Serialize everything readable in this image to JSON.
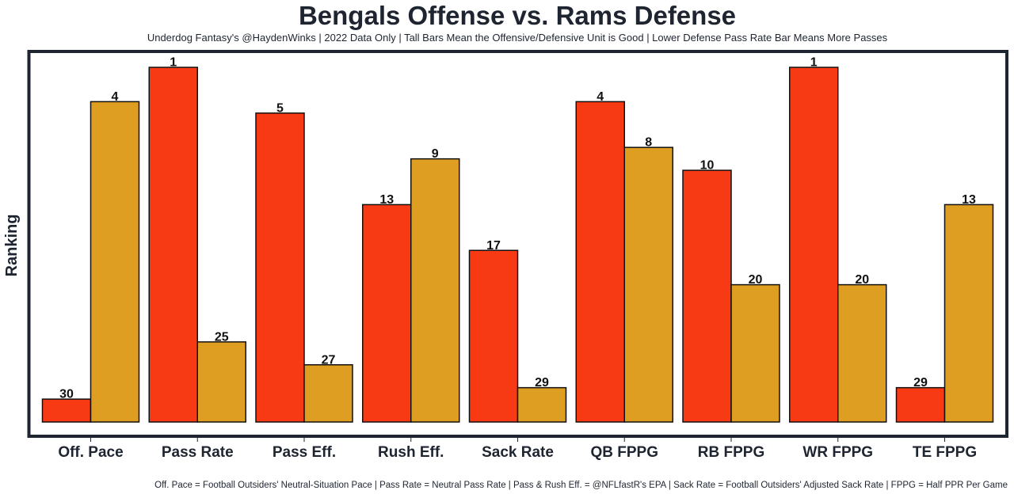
{
  "chart_data": {
    "type": "bar",
    "title": "Bengals Offense vs. Rams Defense",
    "subtitle": "Underdog Fantasy's @HaydenWinks | 2022 Data Only | Tall Bars Mean the Offensive/Defensive Unit is Good | Lower Defense Pass Rate Bar Means More Passes",
    "footnote": "Off. Pace = Football Outsiders' Neutral-Situation Pace | Pass Rate = Neutral Pass Rate | Pass & Rush Eff. = @NFLfastR's EPA | Sack Rate = Football Outsiders' Adjusted Sack Rate | FPPG = Half PPR Per Game",
    "xlabel": "",
    "ylabel": "Ranking",
    "rank_axis": "inverted",
    "rank_max": 32,
    "grid": false,
    "categories": [
      "Off. Pace",
      "Pass Rate",
      "Pass Eff.",
      "Rush Eff.",
      "Sack Rate",
      "QB FPPG",
      "RB FPPG",
      "WR FPPG",
      "TE FPPG"
    ],
    "series": [
      {
        "name": "Bengals Offense",
        "color": "#f73a14",
        "values": [
          30,
          1,
          5,
          13,
          17,
          4,
          10,
          1,
          29
        ]
      },
      {
        "name": "Rams Defense",
        "color": "#de9e21",
        "values": [
          4,
          25,
          27,
          9,
          29,
          8,
          20,
          20,
          13
        ]
      }
    ]
  },
  "colors": {
    "text": "#1e2430",
    "frame": "#1e2430",
    "bar_edge": "#111111"
  }
}
